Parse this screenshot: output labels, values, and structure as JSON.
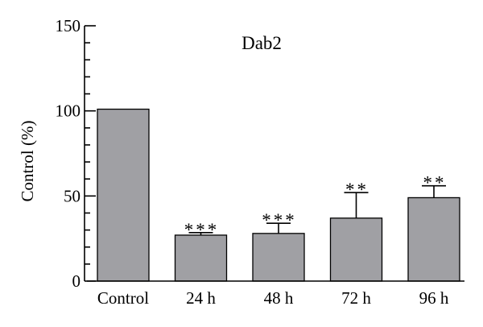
{
  "chart_data": {
    "type": "bar",
    "title": "Dab2",
    "xlabel": "",
    "ylabel": "Control (%)",
    "ylim": [
      0,
      150
    ],
    "yticks": [
      0,
      50,
      100,
      150
    ],
    "categories": [
      "Control",
      "24 h",
      "48 h",
      "72 h",
      "96 h"
    ],
    "values": [
      101,
      27,
      28,
      37,
      49
    ],
    "error_upper": [
      101,
      28.5,
      34,
      52,
      56
    ],
    "significance": [
      "",
      "***",
      "***",
      "**",
      "**"
    ],
    "bar_color": "#a0a0a4",
    "grid": false,
    "legend": "none"
  }
}
